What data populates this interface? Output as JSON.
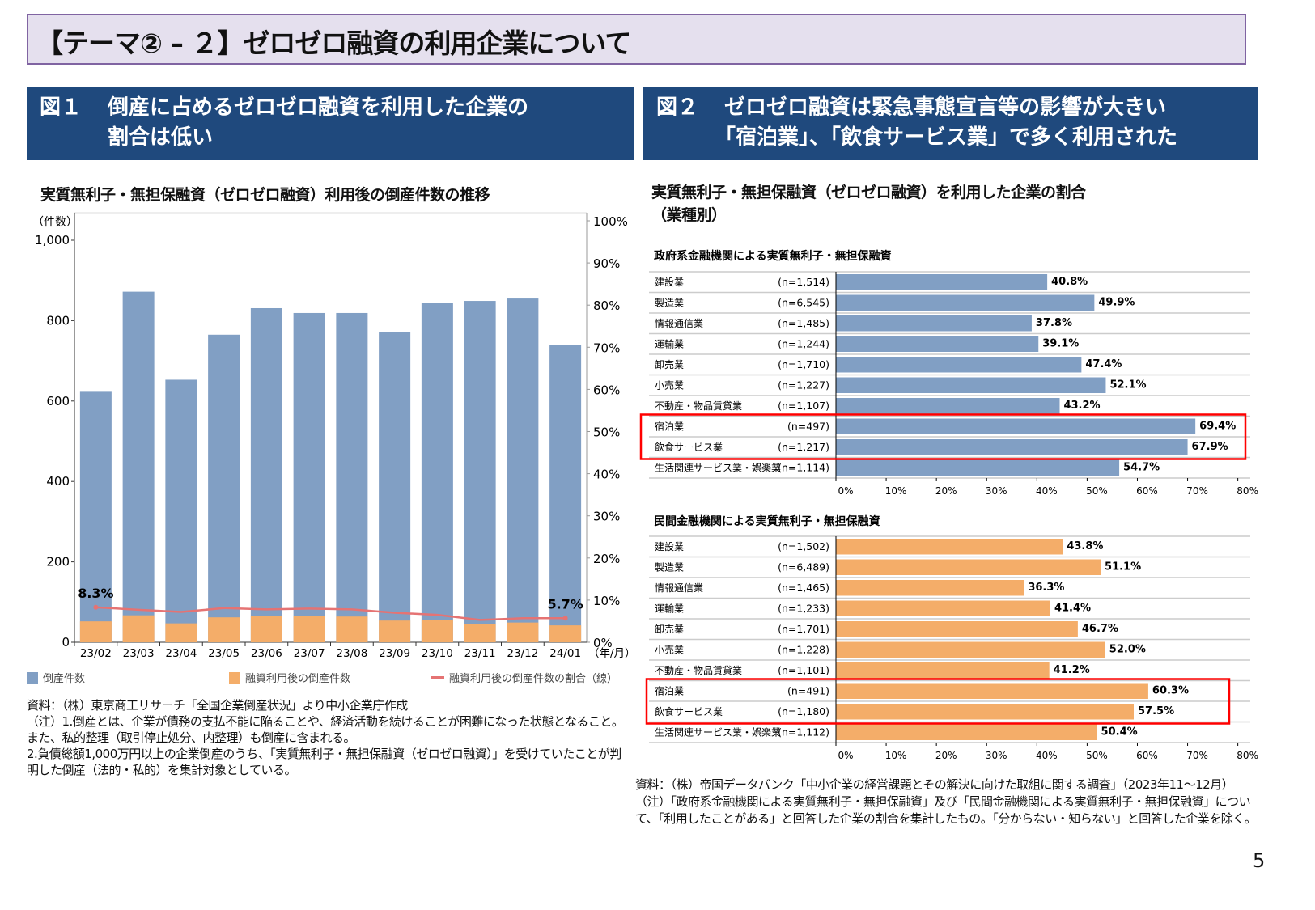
{
  "title": "【テーマ② – ２】ゼロゼロ融資の利用企業について",
  "fig1": {
    "number": "図１",
    "heading_line1": "倒産に占めるゼロゼロ融資を利用した企業の",
    "heading_line2": "割合は低い"
  },
  "fig2": {
    "number": "図２",
    "heading_line1": "ゼロゼロ融資は緊急事態宣言等の影響が大きい",
    "heading_line2": "「宿泊業」、「飲食サービス業」で多く利用された"
  },
  "page_number": "5",
  "left_notes": [
    "資料：（株）東京商工リサーチ「全国企業倒産状況」より中小企業庁作成",
    "（注）1.倒産とは、企業が債務の支払不能に陥ることや、経済活動を続けることが困難になった状態となること。また、私的整理（取引停止処分、内整理）も倒産に含まれる。",
    "2.負債総額1,000万円以上の企業倒産のうち、「実質無利子・無担保融資（ゼロゼロ融資）」を受けていたことが判明した倒産（法的・私的）を集計対象としている。"
  ],
  "right_notes": [
    "資料：（株）帝国データバンク「中小企業の経営課題とその解決に向けた取組に関する調査」（2023年11～12月）",
    "（注）「政府系金融機関による実質無利子・無担保融資」及び「民間金融機関による実質無利子・無担保融資」について、「利用したことがある」と回答した企業の割合を集計したもの。「分からない・知らない」と回答した企業を除く。"
  ],
  "chart_data": [
    {
      "type": "bar",
      "title": "実質無利子・無担保融資（ゼロゼロ融資）利用後の倒産件数の推移",
      "ylabel": "（件数）",
      "y2label": "",
      "xunit": "（年/月）",
      "categories": [
        "23/02",
        "23/03",
        "23/04",
        "23/05",
        "23/06",
        "23/07",
        "23/08",
        "23/09",
        "23/10",
        "23/11",
        "23/12",
        "24/01"
      ],
      "ylim": [
        0,
        1000
      ],
      "yticks": [
        "0",
        "200",
        "400",
        "600",
        "800",
        "1,000"
      ],
      "y2lim": [
        0,
        100
      ],
      "y2ticks": [
        "0%",
        "10%",
        "20%",
        "30%",
        "40%",
        "50%",
        "60%",
        "70%",
        "80%",
        "90%",
        "100%"
      ],
      "series": [
        {
          "name": "倒産件数",
          "kind": "bar",
          "color": "#819fc4",
          "values": [
            625,
            872,
            653,
            765,
            831,
            819,
            819,
            771,
            844,
            849,
            855,
            739
          ]
        },
        {
          "name": "融資利用後の倒産件数",
          "kind": "bar",
          "color": "#f4ad69",
          "values": [
            52,
            67,
            47,
            62,
            65,
            66,
            64,
            54,
            55,
            45,
            49,
            42
          ]
        },
        {
          "name": "融資利用後の倒産件数の割合（線）",
          "kind": "line",
          "axis": "right",
          "color": "#e57373",
          "values": [
            8.3,
            7.7,
            7.2,
            8.1,
            7.8,
            8.0,
            7.8,
            7.0,
            6.5,
            5.3,
            5.7,
            5.7
          ]
        }
      ],
      "data_labels": [
        {
          "index": 0,
          "text": "8.3%"
        },
        {
          "index": 11,
          "text": "5.7%"
        }
      ],
      "legend": "bottom",
      "grid": false
    },
    {
      "type": "bar",
      "orientation": "horizontal",
      "title": "実質無利子・無担保融資（ゼロゼロ融資）を利用した企業の割合（業種別）",
      "title_line1": "実質無利子・無担保融資（ゼロゼロ融資）を利用した企業の割合",
      "title_line2": "（業種別）",
      "xlim": [
        0,
        80
      ],
      "xticks": [
        "0%",
        "10%",
        "20%",
        "30%",
        "40%",
        "50%",
        "60%",
        "70%",
        "80%"
      ],
      "highlight_color": "#ff0000",
      "highlight_categories": [
        "宿泊業",
        "飲食サービス業"
      ],
      "panels": [
        {
          "subtitle": "政府系金融機関による実質無利子・無担保融資",
          "color": "#819fc4",
          "categories": [
            "建設業",
            "製造業",
            "情報通信業",
            "運輸業",
            "卸売業",
            "小売業",
            "不動産・物品賃貸業",
            "宿泊業",
            "飲食サービス業",
            "生活関連サービス業・娯楽業"
          ],
          "n": [
            "(n=1,514)",
            "(n=6,545)",
            "(n=1,485)",
            "(n=1,244)",
            "(n=1,710)",
            "(n=1,227)",
            "(n=1,107)",
            "(n=497)",
            "(n=1,217)",
            "(n=1,114)"
          ],
          "values": [
            40.8,
            49.9,
            37.8,
            39.1,
            47.4,
            52.1,
            43.2,
            69.4,
            67.9,
            54.7
          ],
          "labels": [
            "40.8%",
            "49.9%",
            "37.8%",
            "39.1%",
            "47.4%",
            "52.1%",
            "43.2%",
            "69.4%",
            "67.9%",
            "54.7%"
          ]
        },
        {
          "subtitle": "民間金融機関による実質無利子・無担保融資",
          "color": "#f4ad69",
          "categories": [
            "建設業",
            "製造業",
            "情報通信業",
            "運輸業",
            "卸売業",
            "小売業",
            "不動産・物品賃貸業",
            "宿泊業",
            "飲食サービス業",
            "生活関連サービス業・娯楽業"
          ],
          "n": [
            "(n=1,502)",
            "(n=6,489)",
            "(n=1,465)",
            "(n=1,233)",
            "(n=1,701)",
            "(n=1,228)",
            "(n=1,101)",
            "(n=491)",
            "(n=1,180)",
            "(n=1,112)"
          ],
          "values": [
            43.8,
            51.1,
            36.3,
            41.4,
            46.7,
            52.0,
            41.2,
            60.3,
            57.5,
            50.4
          ],
          "labels": [
            "43.8%",
            "51.1%",
            "36.3%",
            "41.4%",
            "46.7%",
            "52.0%",
            "41.2%",
            "60.3%",
            "57.5%",
            "50.4%"
          ]
        }
      ]
    }
  ]
}
